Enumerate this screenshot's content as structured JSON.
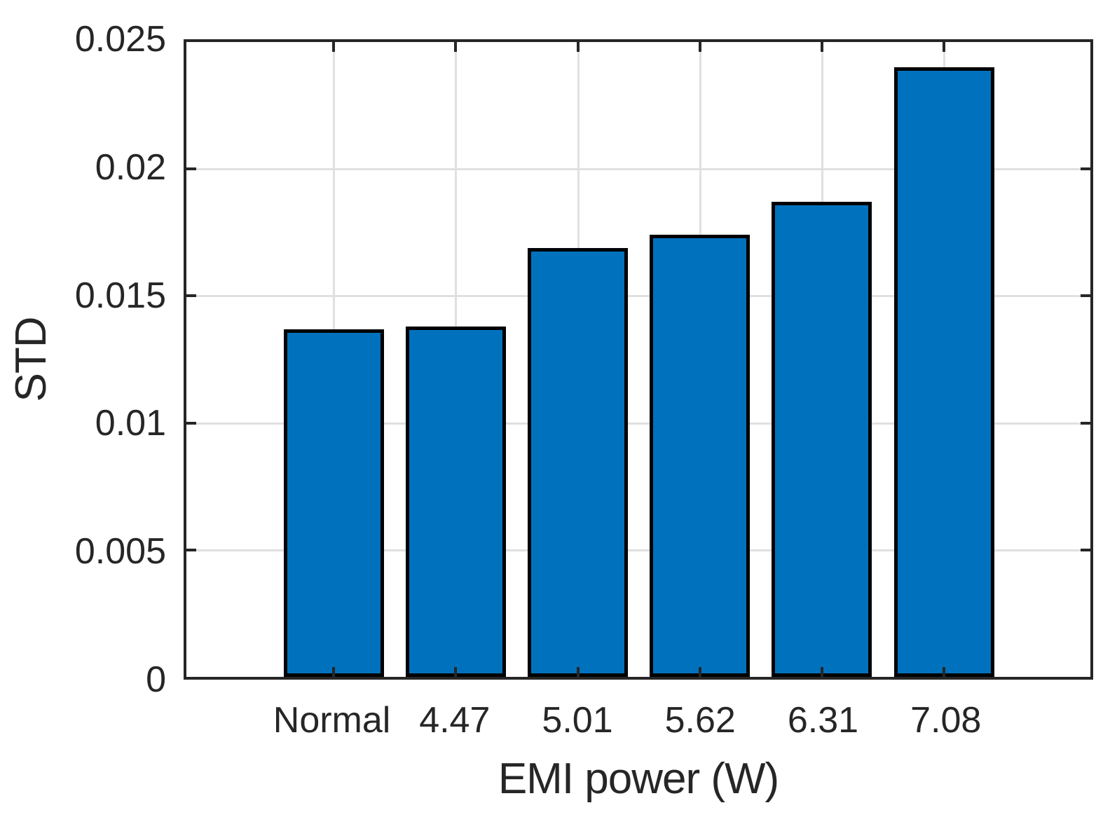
{
  "chart_data": {
    "type": "bar",
    "categories": [
      "Normal",
      "4.47",
      "5.01",
      "5.62",
      "6.31",
      "7.08"
    ],
    "values": [
      0.0137,
      0.0138,
      0.0169,
      0.0174,
      0.0187,
      0.024
    ],
    "title": "",
    "xlabel": "EMI power (W)",
    "ylabel": "STD",
    "ylim": [
      0,
      0.025
    ],
    "yticks": [
      0,
      0.005,
      0.01,
      0.015,
      0.02,
      0.025
    ],
    "ytick_labels": [
      "0",
      "0.005",
      "0.01",
      "0.015",
      "0.02",
      "0.025"
    ],
    "grid": "both",
    "legend": "none",
    "bar_color": "#0072BD",
    "bar_edge_color": "#000000",
    "axis_color": "#262626",
    "grid_color": "#E0E0E0",
    "background_color": "#FFFFFF"
  }
}
